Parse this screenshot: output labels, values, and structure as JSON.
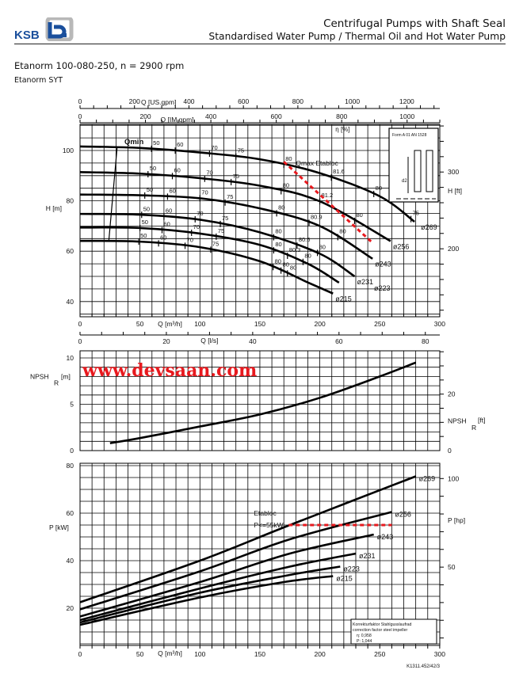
{
  "header": {
    "brand": "KSB",
    "line1": "Centrifugal Pumps with Shaft Seal",
    "line2": "Standardised Water Pump / Thermal Oil and Hot Water Pump",
    "title": "Etanorm 100-080-250, n = 2900 rpm",
    "subtitle": "Etanorm SYT",
    "watermark": "www.devsaan.com",
    "drawing_code": "K1311.452/42/3",
    "inset_label": "Form A 01 AN 1528",
    "inset_dim": "d2"
  },
  "colors": {
    "curve": "#000000",
    "grid": "#000000",
    "limit": "#e8191e",
    "brand": "#1a4f9c"
  },
  "axes": {
    "us_gpm": {
      "label": "Q [US.gpm]",
      "ticks": [
        "0",
        "200",
        "400",
        "600",
        "800",
        "1000",
        "1200"
      ]
    },
    "im_gpm": {
      "label": "Q [IM.gpm]",
      "ticks": [
        "0",
        "200",
        "400",
        "600",
        "800",
        "1000"
      ]
    },
    "m3h": {
      "label": "Q [m³/h]",
      "ticks": [
        "0",
        "50",
        "100",
        "150",
        "200",
        "250",
        "300"
      ]
    },
    "ls": {
      "label": "Q [l/s]",
      "ticks": [
        "0",
        "20",
        "40",
        "60",
        "80"
      ]
    }
  },
  "chart_data": [
    {
      "type": "line",
      "title": "Head",
      "xlabel": "Q [m³/h]",
      "ylabel": "H [m]",
      "ylabel_right": "H [ft]",
      "xlim": [
        0,
        300
      ],
      "ylim": [
        34,
        110
      ],
      "yticks": [
        "40",
        "60",
        "80",
        "100"
      ],
      "yticks_right": [
        "200",
        "300"
      ],
      "eta_label": "η [%]",
      "qmin_label": "Qmin",
      "qmax_label": "Qmax Etabloc",
      "qmin_line": [
        [
          31,
          101.6
        ],
        [
          24,
          64.1
        ]
      ],
      "qmax_line": [
        [
          170,
          95.5
        ],
        [
          244,
          63.3
        ]
      ],
      "series": [
        {
          "name": "ø269",
          "points": [
            [
              0,
              101.6
            ],
            [
              50,
              101
            ],
            [
              100,
              99.2
            ],
            [
              150,
              96.5
            ],
            [
              200,
              91
            ],
            [
              250,
              81.8
            ],
            [
              279,
              71.7
            ]
          ]
        },
        {
          "name": "ø256",
          "points": [
            [
              0,
              91.4
            ],
            [
              50,
              90.8
            ],
            [
              100,
              89
            ],
            [
              150,
              86
            ],
            [
              200,
              79.8
            ],
            [
              259,
              64
            ]
          ]
        },
        {
          "name": "ø243",
          "points": [
            [
              0,
              82.5
            ],
            [
              50,
              82.2
            ],
            [
              100,
              81
            ],
            [
              150,
              77
            ],
            [
              200,
              70
            ],
            [
              244,
              57
            ]
          ]
        },
        {
          "name": "ø231",
          "points": [
            [
              0,
              74.8
            ],
            [
              50,
              74.5
            ],
            [
              100,
              72.5
            ],
            [
              150,
              67.5
            ],
            [
              200,
              59
            ],
            [
              229,
              50
            ]
          ]
        },
        {
          "name": "ø223",
          "points": [
            [
              0,
              69.4
            ],
            [
              50,
              69.2
            ],
            [
              100,
              67
            ],
            [
              150,
              62.5
            ],
            [
              190,
              55
            ],
            [
              216,
              47.5
            ]
          ]
        },
        {
          "name": "ø215",
          "points": [
            [
              0,
              64.1
            ],
            [
              50,
              63.8
            ],
            [
              100,
              61.6
            ],
            [
              150,
              56
            ],
            [
              190,
              47.6
            ],
            [
              211,
              43.2
            ]
          ]
        }
      ],
      "efficiency_marks": [
        {
          "series": 0,
          "q": 59.6,
          "label": "50"
        },
        {
          "series": 0,
          "q": 79.4,
          "label": "60"
        },
        {
          "series": 0,
          "q": 108,
          "label": "70"
        },
        {
          "series": 0,
          "q": 130,
          "label": "75"
        },
        {
          "series": 0,
          "q": 170,
          "label": "80"
        },
        {
          "series": 0,
          "q": 209.6,
          "label": "81.6"
        },
        {
          "series": 0,
          "q": 245,
          "label": "80"
        },
        {
          "series": 0,
          "q": 276,
          "label": "75"
        },
        {
          "series": 1,
          "q": 56.7,
          "label": "50"
        },
        {
          "series": 1,
          "q": 77,
          "label": "60"
        },
        {
          "series": 1,
          "q": 104,
          "label": "70"
        },
        {
          "series": 1,
          "q": 126,
          "label": "75"
        },
        {
          "series": 1,
          "q": 167.7,
          "label": "80"
        },
        {
          "series": 1,
          "q": 200,
          "label": "81.2"
        },
        {
          "series": 1,
          "q": 229,
          "label": "80"
        },
        {
          "series": 2,
          "q": 54,
          "label": "50"
        },
        {
          "series": 2,
          "q": 73,
          "label": "60"
        },
        {
          "series": 2,
          "q": 100,
          "label": "70"
        },
        {
          "series": 2,
          "q": 121,
          "label": "75"
        },
        {
          "series": 2,
          "q": 164,
          "label": "80"
        },
        {
          "series": 2,
          "q": 191,
          "label": "80.9"
        },
        {
          "series": 2,
          "q": 215,
          "label": "80"
        },
        {
          "series": 3,
          "q": 51.4,
          "label": "50"
        },
        {
          "series": 3,
          "q": 70,
          "label": "60"
        },
        {
          "series": 3,
          "q": 96,
          "label": "70"
        },
        {
          "series": 3,
          "q": 117,
          "label": "75"
        },
        {
          "series": 3,
          "q": 161.5,
          "label": "80"
        },
        {
          "series": 3,
          "q": 181,
          "label": "80.5"
        },
        {
          "series": 3,
          "q": 198,
          "label": "80"
        },
        {
          "series": 4,
          "q": 50,
          "label": "50"
        },
        {
          "series": 4,
          "q": 68.4,
          "label": "60"
        },
        {
          "series": 4,
          "q": 93,
          "label": "70"
        },
        {
          "series": 4,
          "q": 113.6,
          "label": "75"
        },
        {
          "series": 4,
          "q": 161.5,
          "label": "80"
        },
        {
          "series": 4,
          "q": 173,
          "label": "80.3"
        },
        {
          "series": 4,
          "q": 186,
          "label": "80"
        },
        {
          "series": 5,
          "q": 49,
          "label": "50"
        },
        {
          "series": 5,
          "q": 65.5,
          "label": "60"
        },
        {
          "series": 5,
          "q": 87.6,
          "label": "70"
        },
        {
          "series": 5,
          "q": 109,
          "label": "75"
        },
        {
          "series": 5,
          "q": 161,
          "label": "80"
        },
        {
          "series": 5,
          "q": 167.6,
          "label": "80"
        },
        {
          "series": 5,
          "q": 173,
          "label": "80"
        }
      ]
    },
    {
      "type": "line",
      "title": "NPSH",
      "xlabel": "Q [m³/h]",
      "ylabel": "NPSH",
      "ylabel_sub": "R",
      "ylabel_unit": "[m]",
      "ylabel_right_unit": "[ft]",
      "xlim": [
        0,
        300
      ],
      "ylim": [
        0,
        10.8
      ],
      "yticks": [
        "0",
        "5",
        "10"
      ],
      "yticks_right": [
        "0",
        "20"
      ],
      "series": [
        {
          "name": "NPSHR",
          "points": [
            [
              25,
              0.8
            ],
            [
              50,
              1.35
            ],
            [
              100,
              2.6
            ],
            [
              150,
              3.9
            ],
            [
              200,
              5.7
            ],
            [
              250,
              8.0
            ],
            [
              280,
              9.5
            ]
          ]
        }
      ]
    },
    {
      "type": "line",
      "title": "Power",
      "xlabel": "Q [m³/h]",
      "ylabel": "P [kW]",
      "ylabel_right": "P [hp]",
      "xlim": [
        0,
        300
      ],
      "ylim": [
        4.3,
        81
      ],
      "yticks": [
        "20",
        "40",
        "60",
        "80"
      ],
      "yticks_right": [
        "50",
        "100"
      ],
      "limit": {
        "label1": "Etabloc",
        "label2": "P<=55kW",
        "value": 55,
        "q_from": 174,
        "q_to": 260
      },
      "series": [
        {
          "name": "ø269",
          "points": [
            [
              0,
              22.5
            ],
            [
              100,
              40
            ],
            [
              175,
              55
            ],
            [
              280,
              75.5
            ]
          ]
        },
        {
          "name": "ø256",
          "points": [
            [
              0,
              19.5
            ],
            [
              100,
              35.5
            ],
            [
              175,
              49
            ],
            [
              260,
              60.5
            ]
          ]
        },
        {
          "name": "ø243",
          "points": [
            [
              0,
              16.5
            ],
            [
              100,
              31
            ],
            [
              175,
              43
            ],
            [
              245,
              51
            ]
          ]
        },
        {
          "name": "ø231",
          "points": [
            [
              0,
              15
            ],
            [
              100,
              28.3
            ],
            [
              175,
              37.5
            ],
            [
              230,
              43
            ]
          ]
        },
        {
          "name": "ø223",
          "points": [
            [
              0,
              14
            ],
            [
              100,
              26.5
            ],
            [
              175,
              34
            ],
            [
              217,
              37.5
            ]
          ]
        },
        {
          "name": "ø215",
          "points": [
            [
              0,
              13
            ],
            [
              100,
              24.5
            ],
            [
              170,
              31
            ],
            [
              211,
              33.5
            ]
          ]
        }
      ],
      "correction_box": {
        "line1": "Korrekturfaktor Stahlgusslaufrad",
        "line2": "correction factor steel impeller",
        "eta": "η: 0,958",
        "p": "P: 1,044"
      }
    }
  ]
}
